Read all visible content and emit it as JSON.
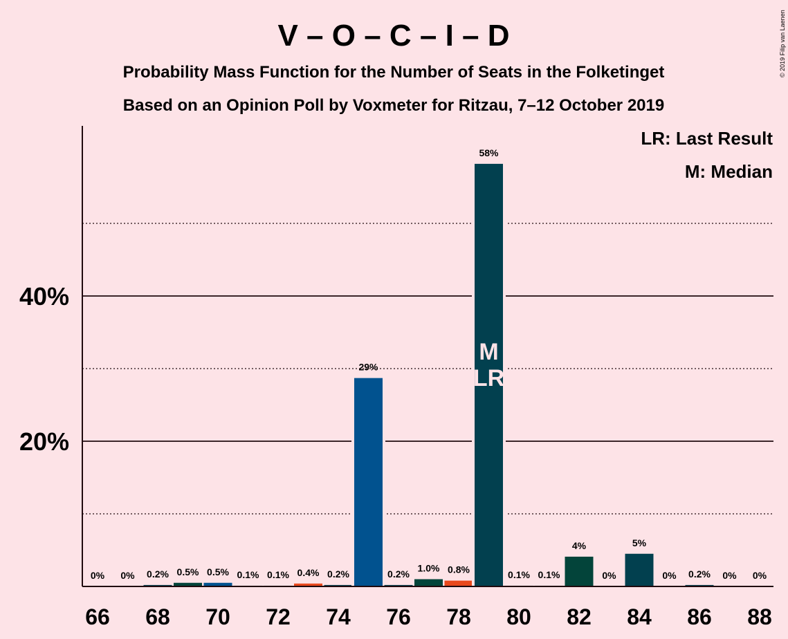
{
  "title": "V – O – C – I – D",
  "subtitle": "Probability Mass Function for the Number of Seats in the Folketinget",
  "subtitle2": "Based on an Opinion Poll by Voxmeter for Ritzau, 7–12 October 2019",
  "legend": {
    "last_result": "LR: Last Result",
    "median": "M: Median"
  },
  "copyright": "© 2019 Filip van Laenen",
  "colors": {
    "background": "#FDE3E7",
    "dark_teal": "#02404F",
    "dark_green": "#03443A",
    "blue": "#01528F",
    "orange": "#E8481C",
    "text": "#1F0A0E"
  },
  "chart_data": {
    "type": "bar",
    "title": "V – O – C – I – D",
    "xlabel": "",
    "ylabel": "",
    "xlim": [
      66,
      88
    ],
    "ylim": [
      0,
      63.5
    ],
    "y_ticks": [
      {
        "value": 20,
        "label": "20%"
      },
      {
        "value": 40,
        "label": "40%"
      }
    ],
    "y_dotted_gridlines": [
      10,
      30,
      50
    ],
    "y_solid_gridlines": [
      20,
      40
    ],
    "x_tick_labels": [
      "66",
      "68",
      "70",
      "72",
      "74",
      "76",
      "78",
      "80",
      "82",
      "84",
      "86",
      "88"
    ],
    "median": 79,
    "last_result": 79,
    "median_marker": "M",
    "last_result_marker": "LR",
    "bars": [
      {
        "x": 66,
        "value": 0,
        "label": "0%",
        "color": "#02404F"
      },
      {
        "x": 67,
        "value": 0,
        "label": "0%",
        "color": "#02404F"
      },
      {
        "x": 68,
        "value": 0.2,
        "label": "0.2%",
        "color": "#02404F"
      },
      {
        "x": 69,
        "value": 0.5,
        "label": "0.5%",
        "color": "#03443A"
      },
      {
        "x": 70,
        "value": 0.5,
        "label": "0.5%",
        "color": "#01528F"
      },
      {
        "x": 71,
        "value": 0.1,
        "label": "0.1%",
        "color": "#02404F"
      },
      {
        "x": 72,
        "value": 0.1,
        "label": "0.1%",
        "color": "#02404F"
      },
      {
        "x": 73,
        "value": 0.4,
        "label": "0.4%",
        "color": "#E8481C"
      },
      {
        "x": 74,
        "value": 0.2,
        "label": "0.2%",
        "color": "#02404F"
      },
      {
        "x": 75,
        "value": 28.7,
        "label": "29%",
        "color": "#01528F"
      },
      {
        "x": 76,
        "value": 0.2,
        "label": "0.2%",
        "color": "#02404F"
      },
      {
        "x": 77,
        "value": 1.0,
        "label": "1.0%",
        "color": "#03443A"
      },
      {
        "x": 78,
        "value": 0.8,
        "label": "0.8%",
        "color": "#E8481C"
      },
      {
        "x": 79,
        "value": 58.2,
        "label": "58%",
        "color": "#02404F"
      },
      {
        "x": 80,
        "value": 0.1,
        "label": "0.1%",
        "color": "#02404F"
      },
      {
        "x": 81,
        "value": 0.1,
        "label": "0.1%",
        "color": "#02404F"
      },
      {
        "x": 82,
        "value": 4.1,
        "label": "4%",
        "color": "#03443A"
      },
      {
        "x": 83,
        "value": 0,
        "label": "0%",
        "color": "#02404F"
      },
      {
        "x": 84,
        "value": 4.5,
        "label": "5%",
        "color": "#02404F"
      },
      {
        "x": 85,
        "value": 0,
        "label": "0%",
        "color": "#02404F"
      },
      {
        "x": 86,
        "value": 0.2,
        "label": "0.2%",
        "color": "#02404F"
      },
      {
        "x": 87,
        "value": 0,
        "label": "0%",
        "color": "#02404F"
      },
      {
        "x": 88,
        "value": 0,
        "label": "0%",
        "color": "#02404F"
      }
    ]
  }
}
